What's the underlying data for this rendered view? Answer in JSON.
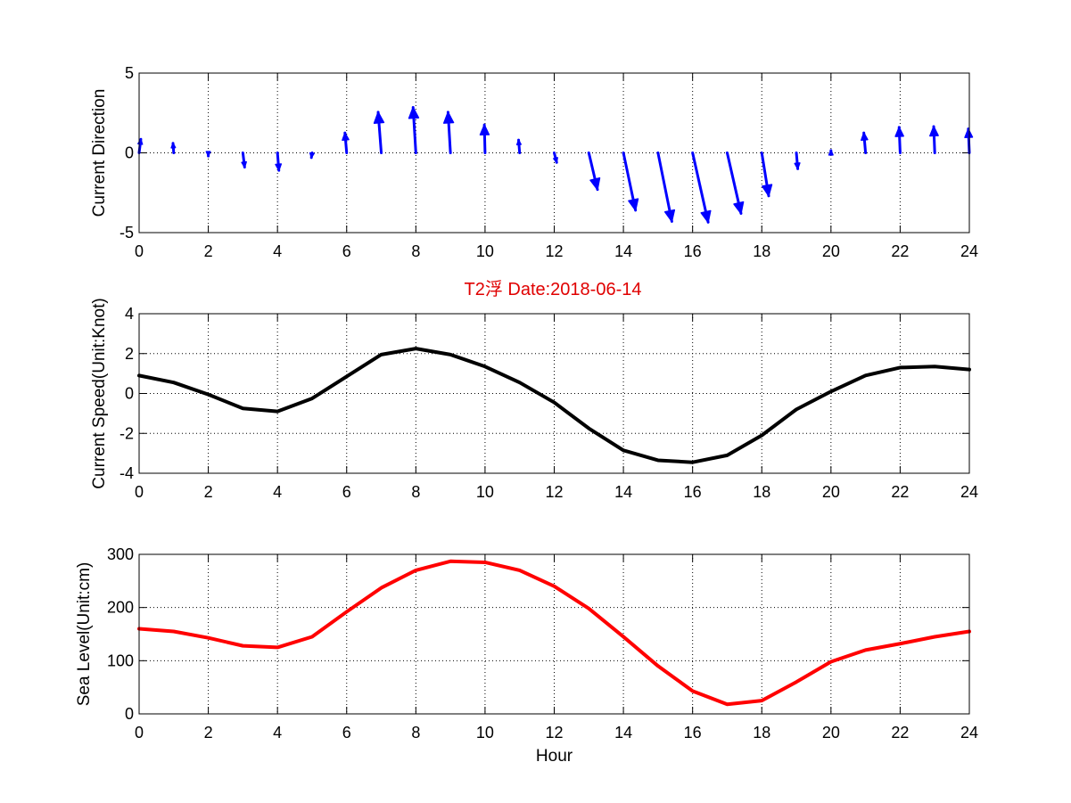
{
  "figure": {
    "title": "T2浮   Date:2018-06-14"
  },
  "chart_data": [
    {
      "type": "quiver",
      "ylabel": "Current Direction",
      "xlabel": "",
      "xlim": [
        0,
        24
      ],
      "ylim": [
        -5,
        5
      ],
      "xticks": [
        "0",
        "2",
        "4",
        "6",
        "8",
        "10",
        "12",
        "14",
        "16",
        "18",
        "20",
        "22",
        "24"
      ],
      "yticks": [
        "-5",
        "0",
        "5"
      ],
      "ytick_values": [
        -5,
        0,
        5
      ],
      "grid": true,
      "color": "#0000ff",
      "x": [
        0,
        1,
        2,
        3,
        4,
        5,
        6,
        7,
        8,
        9,
        10,
        11,
        12,
        13,
        14,
        15,
        16,
        17,
        18,
        19,
        20,
        21,
        22,
        23,
        24
      ],
      "u": [
        0.05,
        -0.02,
        0,
        0.05,
        0.04,
        -0.02,
        -0.05,
        -0.09,
        -0.08,
        -0.07,
        -0.02,
        -0.03,
        0.07,
        0.25,
        0.35,
        0.4,
        0.45,
        0.4,
        0.2,
        0.04,
        0,
        -0.05,
        -0.03,
        -0.03,
        -0.03
      ],
      "v": [
        0.85,
        0.6,
        -0.2,
        -0.9,
        -1.1,
        -0.3,
        1.25,
        2.55,
        2.85,
        2.55,
        1.75,
        0.8,
        -0.6,
        -2.3,
        -3.6,
        -4.3,
        -4.35,
        -3.8,
        -2.7,
        -1.0,
        0.15,
        1.25,
        1.6,
        1.65,
        1.5
      ]
    },
    {
      "type": "line",
      "ylabel": "Current Speed(Unit:Knot)",
      "xlabel": "",
      "xlim": [
        0,
        24
      ],
      "ylim": [
        -4,
        4
      ],
      "xticks": [
        "0",
        "2",
        "4",
        "6",
        "8",
        "10",
        "12",
        "14",
        "16",
        "18",
        "20",
        "22",
        "24"
      ],
      "yticks": [
        "-4",
        "-2",
        "0",
        "2",
        "4"
      ],
      "ytick_values": [
        -4,
        -2,
        0,
        2,
        4
      ],
      "grid": true,
      "color": "#000000",
      "x": [
        0,
        1,
        2,
        3,
        4,
        5,
        6,
        7,
        8,
        9,
        10,
        11,
        12,
        13,
        14,
        15,
        16,
        17,
        18,
        19,
        20,
        21,
        22,
        23,
        24
      ],
      "y": [
        0.9,
        0.55,
        -0.05,
        -0.75,
        -0.9,
        -0.25,
        0.85,
        1.95,
        2.25,
        1.95,
        1.35,
        0.55,
        -0.45,
        -1.75,
        -2.85,
        -3.35,
        -3.45,
        -3.1,
        -2.1,
        -0.8,
        0.1,
        0.9,
        1.3,
        1.35,
        1.2
      ]
    },
    {
      "type": "line",
      "ylabel": "Sea Level(Unit:cm)",
      "xlabel": "Hour",
      "xlim": [
        0,
        24
      ],
      "ylim": [
        0,
        300
      ],
      "xticks": [
        "0",
        "2",
        "4",
        "6",
        "8",
        "10",
        "12",
        "14",
        "16",
        "18",
        "20",
        "22",
        "24"
      ],
      "yticks": [
        "0",
        "100",
        "200",
        "300"
      ],
      "ytick_values": [
        0,
        100,
        200,
        300
      ],
      "grid": true,
      "color": "#ff0000",
      "x": [
        0,
        1,
        2,
        3,
        4,
        5,
        6,
        7,
        8,
        9,
        10,
        11,
        12,
        13,
        14,
        15,
        16,
        17,
        18,
        19,
        20,
        21,
        22,
        23,
        24
      ],
      "y": [
        160,
        155,
        143,
        128,
        125,
        145,
        192,
        237,
        270,
        287,
        285,
        270,
        240,
        198,
        145,
        90,
        43,
        18,
        25,
        60,
        98,
        120,
        132,
        145,
        155
      ]
    }
  ]
}
